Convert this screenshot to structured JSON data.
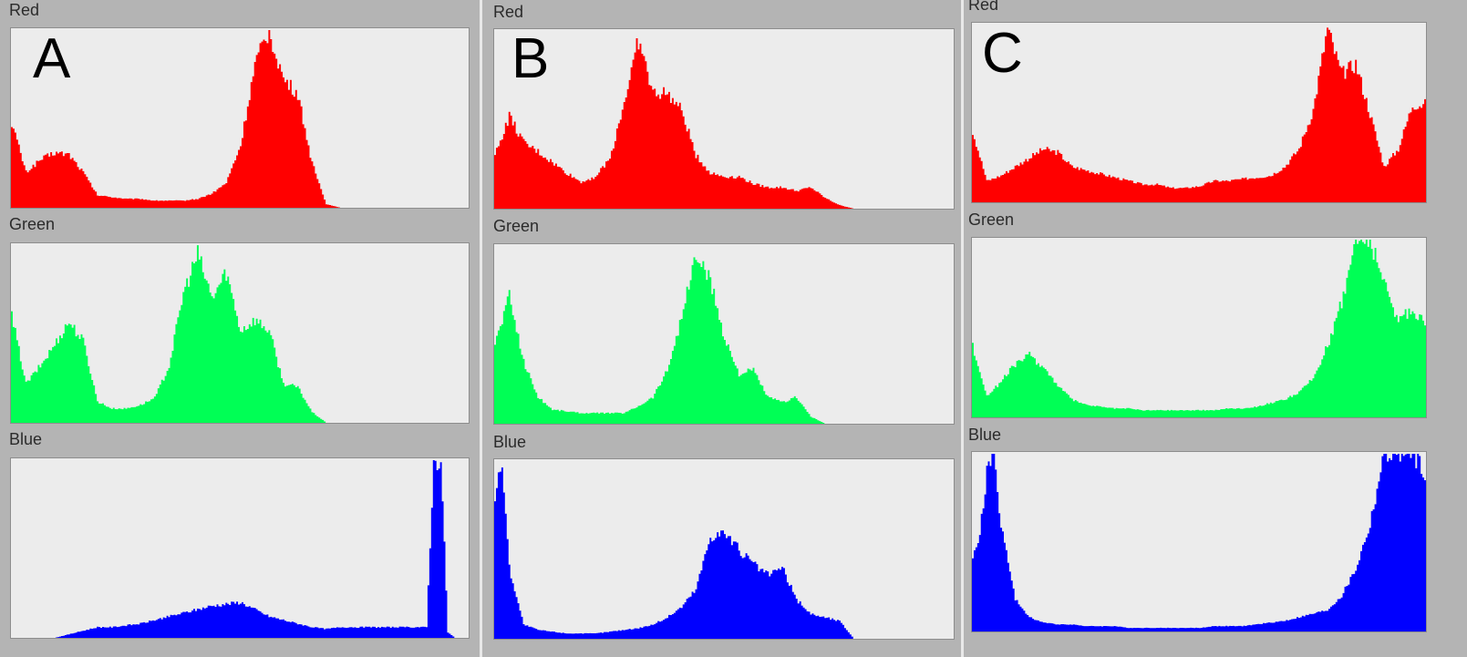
{
  "panels": [
    {
      "id": "A",
      "letter": "A",
      "channels": [
        {
          "label": "Red",
          "color": "#ff0000"
        },
        {
          "label": "Green",
          "color": "#00ff55"
        },
        {
          "label": "Blue",
          "color": "#0000ff"
        }
      ]
    },
    {
      "id": "B",
      "letter": "B",
      "channels": [
        {
          "label": "Red",
          "color": "#ff0000"
        },
        {
          "label": "Green",
          "color": "#00ff55"
        },
        {
          "label": "Blue",
          "color": "#0000ff"
        }
      ]
    },
    {
      "id": "C",
      "letter": "C",
      "channels": [
        {
          "label": "Red",
          "color": "#ff0000"
        },
        {
          "label": "Green",
          "color": "#00ff55"
        },
        {
          "label": "Blue",
          "color": "#0000ff"
        }
      ]
    }
  ],
  "chart_data": [
    {
      "type": "area",
      "panel": "A",
      "channel": "Red",
      "color": "#ff0000",
      "x": [
        0,
        8,
        16,
        24,
        32,
        40,
        48,
        56,
        64,
        72,
        80,
        88,
        96,
        104,
        112,
        120,
        128,
        136,
        144,
        152,
        160,
        168,
        176,
        184,
        192,
        200,
        208,
        216,
        224,
        232,
        240,
        248,
        255
      ],
      "y": [
        0.48,
        0.2,
        0.27,
        0.31,
        0.3,
        0.2,
        0.07,
        0.06,
        0.05,
        0.05,
        0.04,
        0.04,
        0.04,
        0.05,
        0.08,
        0.14,
        0.35,
        0.8,
        1.0,
        0.72,
        0.64,
        0.25,
        0.02,
        0.0,
        0.0,
        0.0,
        0.0,
        0.0,
        0.0,
        0.0,
        0.0,
        0.0,
        0.0
      ],
      "ylim": [
        0,
        1
      ]
    },
    {
      "type": "area",
      "panel": "A",
      "channel": "Green",
      "color": "#00ff55",
      "x": [
        0,
        8,
        16,
        24,
        32,
        40,
        48,
        56,
        64,
        72,
        80,
        88,
        96,
        104,
        112,
        120,
        128,
        136,
        144,
        152,
        160,
        168,
        176,
        184,
        192,
        200,
        208,
        216,
        224,
        232,
        240,
        248,
        255
      ],
      "y": [
        0.6,
        0.22,
        0.32,
        0.44,
        0.57,
        0.46,
        0.12,
        0.08,
        0.08,
        0.1,
        0.14,
        0.32,
        0.73,
        0.95,
        0.7,
        0.85,
        0.52,
        0.58,
        0.52,
        0.22,
        0.2,
        0.06,
        0.0,
        0.0,
        0.0,
        0.0,
        0.0,
        0.0,
        0.0,
        0.0,
        0.0,
        0.0,
        0.0
      ],
      "ylim": [
        0,
        1
      ]
    },
    {
      "type": "area",
      "panel": "A",
      "channel": "Blue",
      "color": "#0000ff",
      "x": [
        0,
        8,
        16,
        24,
        32,
        40,
        48,
        56,
        64,
        72,
        80,
        88,
        96,
        104,
        112,
        120,
        128,
        136,
        144,
        152,
        160,
        168,
        176,
        184,
        192,
        200,
        208,
        216,
        224,
        232,
        236,
        240,
        244,
        248,
        255
      ],
      "y": [
        0.0,
        0.0,
        0.0,
        0.0,
        0.02,
        0.04,
        0.06,
        0.06,
        0.07,
        0.08,
        0.1,
        0.12,
        0.14,
        0.16,
        0.18,
        0.19,
        0.2,
        0.16,
        0.12,
        0.1,
        0.08,
        0.06,
        0.05,
        0.06,
        0.06,
        0.06,
        0.06,
        0.06,
        0.06,
        0.06,
        1.0,
        1.0,
        0.03,
        0.0,
        0.0
      ],
      "ylim": [
        0,
        1
      ]
    },
    {
      "type": "area",
      "panel": "B",
      "channel": "Red",
      "color": "#ff0000",
      "x": [
        0,
        8,
        16,
        24,
        32,
        40,
        48,
        56,
        64,
        72,
        80,
        88,
        96,
        104,
        112,
        120,
        128,
        136,
        144,
        152,
        160,
        168,
        176,
        184,
        192,
        200,
        208,
        216,
        224,
        232,
        240,
        248,
        255
      ],
      "y": [
        0.3,
        0.52,
        0.37,
        0.32,
        0.26,
        0.2,
        0.15,
        0.18,
        0.28,
        0.6,
        0.95,
        0.65,
        0.65,
        0.55,
        0.3,
        0.2,
        0.18,
        0.18,
        0.14,
        0.12,
        0.12,
        0.1,
        0.12,
        0.06,
        0.02,
        0.0,
        0.0,
        0.0,
        0.0,
        0.0,
        0.0,
        0.0,
        0.0
      ],
      "ylim": [
        0,
        1
      ]
    },
    {
      "type": "area",
      "panel": "B",
      "channel": "Green",
      "color": "#00ff55",
      "x": [
        0,
        8,
        16,
        24,
        32,
        40,
        48,
        56,
        64,
        72,
        80,
        88,
        96,
        104,
        112,
        120,
        128,
        136,
        144,
        152,
        160,
        168,
        176,
        184,
        192,
        200,
        208,
        216,
        224,
        232,
        240,
        248,
        255
      ],
      "y": [
        0.45,
        0.72,
        0.35,
        0.15,
        0.08,
        0.07,
        0.06,
        0.06,
        0.06,
        0.06,
        0.1,
        0.15,
        0.3,
        0.6,
        0.95,
        0.8,
        0.48,
        0.28,
        0.3,
        0.15,
        0.12,
        0.15,
        0.04,
        0.0,
        0.0,
        0.0,
        0.0,
        0.0,
        0.0,
        0.0,
        0.0,
        0.0,
        0.0
      ],
      "ylim": [
        0,
        1
      ]
    },
    {
      "type": "area",
      "panel": "B",
      "channel": "Blue",
      "color": "#0000ff",
      "x": [
        0,
        4,
        8,
        16,
        24,
        32,
        40,
        48,
        56,
        64,
        72,
        80,
        88,
        96,
        104,
        112,
        120,
        128,
        136,
        144,
        152,
        160,
        168,
        176,
        184,
        192,
        200,
        208,
        216,
        224,
        232,
        240,
        248,
        255
      ],
      "y": [
        0.8,
        1.0,
        0.4,
        0.08,
        0.05,
        0.04,
        0.03,
        0.03,
        0.03,
        0.04,
        0.05,
        0.06,
        0.08,
        0.12,
        0.18,
        0.28,
        0.58,
        0.6,
        0.5,
        0.42,
        0.36,
        0.4,
        0.22,
        0.14,
        0.12,
        0.1,
        0.0,
        0.0,
        0.0,
        0.0,
        0.0,
        0.0,
        0.0,
        0.0
      ],
      "ylim": [
        0,
        1
      ]
    },
    {
      "type": "area",
      "panel": "C",
      "channel": "Red",
      "color": "#ff0000",
      "x": [
        0,
        8,
        16,
        24,
        32,
        40,
        48,
        56,
        64,
        72,
        80,
        88,
        96,
        104,
        112,
        120,
        128,
        136,
        144,
        152,
        160,
        168,
        176,
        184,
        192,
        200,
        208,
        216,
        224,
        232,
        240,
        248,
        255
      ],
      "y": [
        0.4,
        0.12,
        0.15,
        0.2,
        0.25,
        0.3,
        0.28,
        0.2,
        0.18,
        0.16,
        0.14,
        0.12,
        0.1,
        0.1,
        0.08,
        0.08,
        0.09,
        0.12,
        0.12,
        0.13,
        0.14,
        0.15,
        0.2,
        0.3,
        0.52,
        0.98,
        0.72,
        0.78,
        0.5,
        0.2,
        0.3,
        0.55,
        0.55
      ],
      "ylim": [
        0,
        1
      ]
    },
    {
      "type": "area",
      "panel": "C",
      "channel": "Green",
      "color": "#00ff55",
      "x": [
        0,
        8,
        16,
        24,
        32,
        40,
        48,
        56,
        64,
        72,
        80,
        88,
        96,
        104,
        112,
        120,
        128,
        136,
        144,
        152,
        160,
        168,
        176,
        184,
        192,
        200,
        208,
        216,
        224,
        232,
        240,
        248,
        255
      ],
      "y": [
        0.4,
        0.12,
        0.2,
        0.3,
        0.35,
        0.28,
        0.18,
        0.1,
        0.07,
        0.06,
        0.05,
        0.05,
        0.04,
        0.04,
        0.04,
        0.04,
        0.04,
        0.04,
        0.05,
        0.05,
        0.06,
        0.08,
        0.1,
        0.14,
        0.22,
        0.4,
        0.65,
        1.0,
        1.0,
        0.75,
        0.55,
        0.6,
        0.55
      ],
      "ylim": [
        0,
        1
      ]
    },
    {
      "type": "area",
      "panel": "C",
      "channel": "Blue",
      "color": "#0000ff",
      "x": [
        0,
        4,
        8,
        12,
        16,
        24,
        32,
        40,
        48,
        56,
        64,
        72,
        80,
        88,
        96,
        104,
        112,
        120,
        128,
        136,
        144,
        152,
        160,
        168,
        176,
        184,
        192,
        200,
        208,
        216,
        224,
        232,
        240,
        248,
        255
      ],
      "y": [
        0.4,
        0.55,
        0.9,
        1.0,
        0.6,
        0.18,
        0.08,
        0.05,
        0.04,
        0.04,
        0.03,
        0.03,
        0.03,
        0.02,
        0.02,
        0.02,
        0.02,
        0.02,
        0.02,
        0.03,
        0.03,
        0.03,
        0.04,
        0.05,
        0.06,
        0.08,
        0.1,
        0.12,
        0.2,
        0.35,
        0.6,
        1.0,
        1.0,
        1.0,
        0.9
      ],
      "ylim": [
        0,
        1
      ]
    }
  ]
}
